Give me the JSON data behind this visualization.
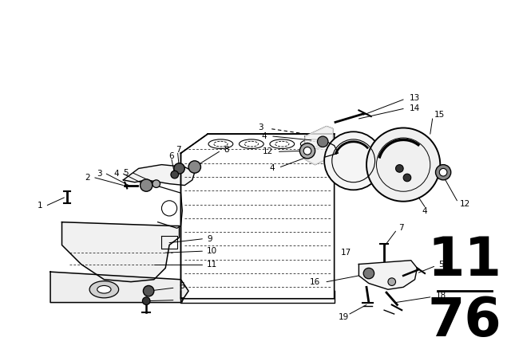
{
  "bg_color": "#ffffff",
  "line_color": "#000000",
  "fig_width": 6.4,
  "fig_height": 4.48,
  "dpi": 100,
  "page_num_top": "11",
  "page_num_bottom": "76",
  "page_num_fontsize": 48
}
